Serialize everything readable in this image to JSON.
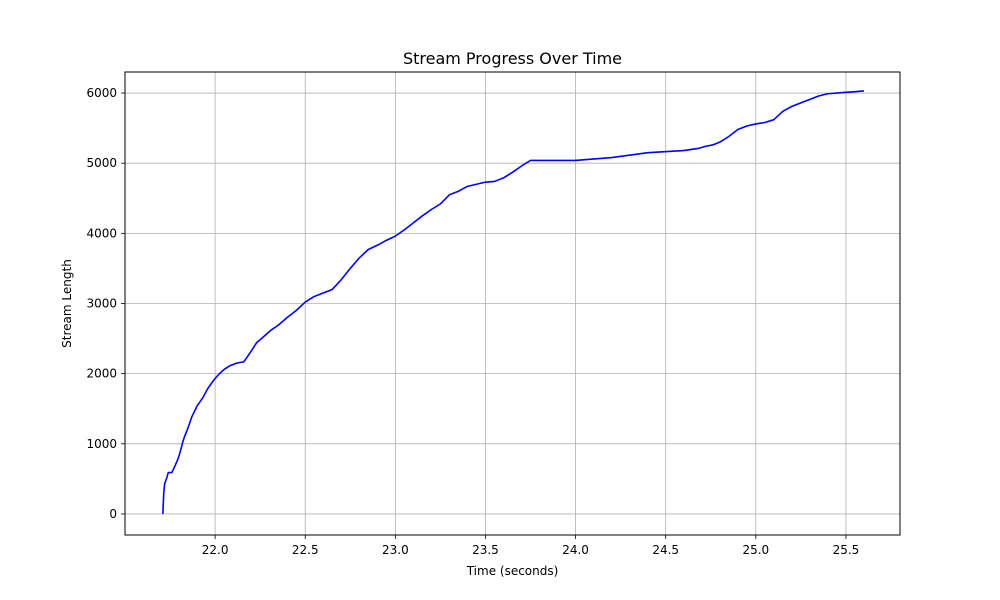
{
  "chart_data": {
    "type": "line",
    "title": "Stream Progress Over Time",
    "xlabel": "Time (seconds)",
    "ylabel": "Stream Length",
    "xlim": [
      21.5,
      25.8
    ],
    "ylim": [
      -300,
      6300
    ],
    "xticks": [
      22.0,
      22.5,
      23.0,
      23.5,
      24.0,
      24.5,
      25.0,
      25.5
    ],
    "xtick_labels": [
      "22.0",
      "22.5",
      "23.0",
      "23.5",
      "24.0",
      "24.5",
      "25.0",
      "25.5"
    ],
    "yticks": [
      0,
      1000,
      2000,
      3000,
      4000,
      5000,
      6000
    ],
    "ytick_labels": [
      "0",
      "1000",
      "2000",
      "3000",
      "4000",
      "5000",
      "6000"
    ],
    "grid": true,
    "legend": false,
    "series": [
      {
        "color": "#0000ff",
        "x": [
          21.71,
          21.715,
          21.72,
          21.73,
          21.74,
          21.75,
          21.76,
          21.78,
          21.79,
          21.8,
          21.81,
          21.82,
          21.83,
          21.85,
          21.87,
          21.9,
          21.93,
          21.96,
          21.99,
          22.02,
          22.05,
          22.08,
          22.12,
          22.16,
          22.2,
          22.23,
          22.27,
          22.31,
          22.35,
          22.4,
          22.45,
          22.5,
          22.55,
          22.6,
          22.65,
          22.7,
          22.75,
          22.8,
          22.85,
          22.9,
          22.95,
          23.0,
          23.05,
          23.1,
          23.15,
          23.2,
          23.25,
          23.3,
          23.35,
          23.4,
          23.45,
          23.5,
          23.55,
          23.6,
          23.65,
          23.7,
          23.75,
          23.8,
          23.85,
          23.88,
          23.9,
          24.0,
          24.2,
          24.4,
          24.6,
          24.68,
          24.72,
          24.76,
          24.8,
          24.85,
          24.9,
          24.95,
          25.0,
          25.05,
          25.1,
          25.15,
          25.2,
          25.25,
          25.3,
          25.35,
          25.4,
          25.45,
          25.5,
          25.55,
          25.6
        ],
        "y": [
          0,
          300,
          430,
          500,
          590,
          590,
          590,
          700,
          760,
          830,
          920,
          1020,
          1100,
          1230,
          1380,
          1540,
          1650,
          1790,
          1900,
          1990,
          2060,
          2110,
          2150,
          2170,
          2320,
          2440,
          2530,
          2620,
          2690,
          2800,
          2900,
          3020,
          3100,
          3150,
          3200,
          3340,
          3500,
          3650,
          3770,
          3830,
          3900,
          3960,
          4050,
          4150,
          4250,
          4340,
          4420,
          4550,
          4600,
          4670,
          4700,
          4730,
          4740,
          4790,
          4870,
          4960,
          5040,
          5040,
          5040,
          5040,
          5040,
          5040,
          5080,
          5150,
          5180,
          5210,
          5240,
          5260,
          5300,
          5380,
          5480,
          5530,
          5560,
          5580,
          5620,
          5740,
          5810,
          5860,
          5910,
          5960,
          5990,
          6000,
          6010,
          6020,
          6030
        ]
      }
    ]
  }
}
